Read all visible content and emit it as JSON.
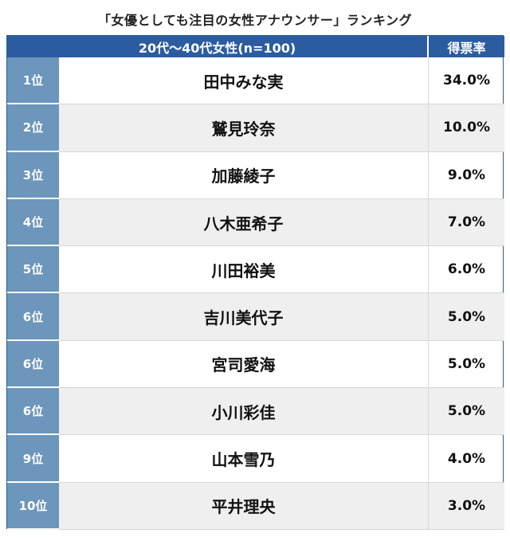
{
  "title": "「女優としても注目の女性アナウンサー」ランキング",
  "header": {
    "group_label": "20代〜40代女性(n=100)",
    "rate_label": "得票率"
  },
  "rows": [
    {
      "rank": "1位",
      "name": "田中みな実",
      "rate": "34.0%"
    },
    {
      "rank": "2位",
      "name": "鷲見玲奈",
      "rate": "10.0%"
    },
    {
      "rank": "3位",
      "name": "加藤綾子",
      "rate": "9.0%"
    },
    {
      "rank": "4位",
      "name": "八木亜希子",
      "rate": "7.0%"
    },
    {
      "rank": "5位",
      "name": "川田裕美",
      "rate": "6.0%"
    },
    {
      "rank": "6位",
      "name": "吉川美代子",
      "rate": "5.0%"
    },
    {
      "rank": "6位",
      "name": "宮司愛海",
      "rate": "5.0%"
    },
    {
      "rank": "6位",
      "name": "小川彩佳",
      "rate": "5.0%"
    },
    {
      "rank": "9位",
      "name": "山本雪乃",
      "rate": "4.0%"
    },
    {
      "rank": "10位",
      "name": "平井理央",
      "rate": "3.0%"
    }
  ]
}
